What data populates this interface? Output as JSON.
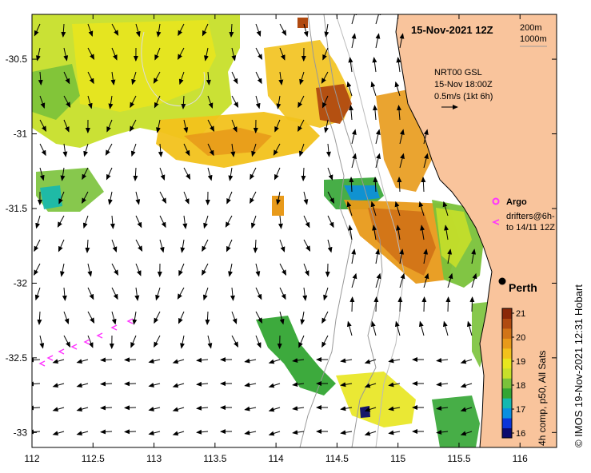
{
  "map": {
    "title": "15-Nov-2021 12Z",
    "x_ticks": [
      "112",
      "112.5",
      "113",
      "113.5",
      "114",
      "114.5",
      "115",
      "115.5",
      "116"
    ],
    "y_ticks": [
      "-30.5",
      "-31",
      "-31.5",
      "-32",
      "-32.5",
      "-33"
    ],
    "lon_range": [
      112,
      116.3
    ],
    "lat_range": [
      -30.2,
      -33.1
    ],
    "grid": true,
    "land_color": "#f9c49c",
    "ocean_color": "#ffffff"
  },
  "isobaths": {
    "label_200": "200m",
    "label_1000": "1000m"
  },
  "current_legend": {
    "line1": "NRT00 GSL",
    "line2": "15-Nov 18:00Z",
    "line3": "0.5m/s (1kt 6h)"
  },
  "argo": {
    "label": "Argo",
    "color": "#ff33ff"
  },
  "drifters": {
    "label_line1": "drifters@6h-",
    "label_line2": "to 14/11 12Z",
    "color": "#ff33ff"
  },
  "city": {
    "name": "Perth"
  },
  "colorbar": {
    "ticks": [
      "21",
      "20",
      "19",
      "18",
      "17",
      "16"
    ],
    "label": "4h comp, p50, All Sats",
    "range": [
      15.8,
      21.2
    ],
    "colors": [
      "#0b0a6e",
      "#0c35d9",
      "#0a8fe0",
      "#14b8b0",
      "#33a533",
      "#7ac23a",
      "#c7df2a",
      "#e8e61e",
      "#f2c21c",
      "#e89a1a",
      "#d27417",
      "#b04a10",
      "#8b2808"
    ]
  },
  "credit": "© IMOS 19-Nov-2021 12:31 Hobart"
}
